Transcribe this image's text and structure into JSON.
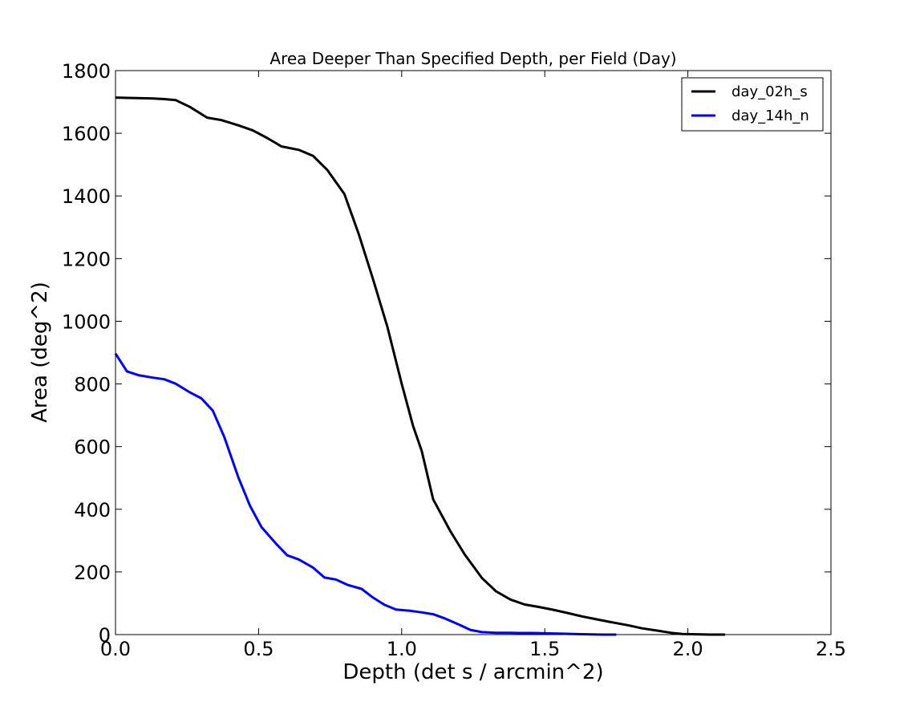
{
  "chart_data": {
    "type": "line",
    "title": "Area Deeper Than Specified Depth, per Field (Day)",
    "xlabel": "Depth (det s / arcmin^2)",
    "ylabel": "Area (deg^2)",
    "xlim": [
      0.0,
      2.5
    ],
    "ylim": [
      0,
      1800
    ],
    "xticks": [
      0.0,
      0.5,
      1.0,
      1.5,
      2.0,
      2.5
    ],
    "xtick_labels": [
      "0.0",
      "0.5",
      "1.0",
      "1.5",
      "2.0",
      "2.5"
    ],
    "yticks": [
      0,
      200,
      400,
      600,
      800,
      1000,
      1200,
      1400,
      1600,
      1800
    ],
    "ytick_labels": [
      "0",
      "200",
      "400",
      "600",
      "800",
      "1000",
      "1200",
      "1400",
      "1600",
      "1800"
    ],
    "grid": false,
    "legend_position": "top-right",
    "series": [
      {
        "name": "day_02h_s",
        "color": "#000000",
        "x": [
          0.0,
          0.04,
          0.09,
          0.13,
          0.17,
          0.21,
          0.26,
          0.32,
          0.37,
          0.43,
          0.48,
          0.53,
          0.58,
          0.64,
          0.69,
          0.74,
          0.8,
          0.85,
          0.9,
          0.95,
          1.0,
          1.04,
          1.07,
          1.11,
          1.17,
          1.22,
          1.28,
          1.33,
          1.38,
          1.43,
          1.48,
          1.53,
          1.58,
          1.63,
          1.68,
          1.73,
          1.79,
          1.84,
          1.89,
          1.94,
          1.98,
          2.03,
          2.08,
          2.13
        ],
        "y": [
          1714,
          1713,
          1712,
          1711,
          1709,
          1706,
          1684,
          1650,
          1642,
          1625,
          1609,
          1585,
          1558,
          1547,
          1528,
          1483,
          1406,
          1278,
          1134,
          982,
          801,
          665,
          586,
          432,
          330,
          256,
          181,
          138,
          112,
          96,
          88,
          79,
          69,
          58,
          49,
          40,
          30,
          20,
          13,
          6,
          2,
          1,
          0,
          0
        ]
      },
      {
        "name": "day_14h_n",
        "color": "#0000ff",
        "x": [
          0.0,
          0.04,
          0.08,
          0.13,
          0.17,
          0.21,
          0.26,
          0.3,
          0.34,
          0.38,
          0.43,
          0.47,
          0.51,
          0.56,
          0.6,
          0.64,
          0.69,
          0.73,
          0.77,
          0.81,
          0.86,
          0.9,
          0.94,
          0.98,
          1.03,
          1.07,
          1.11,
          1.15,
          1.2,
          1.24,
          1.28,
          1.33,
          1.37,
          1.41,
          1.46,
          1.5,
          1.55,
          1.6,
          1.65,
          1.7,
          1.75
        ],
        "y": [
          897,
          840,
          828,
          820,
          815,
          801,
          773,
          754,
          715,
          631,
          500,
          411,
          343,
          291,
          253,
          240,
          214,
          182,
          176,
          159,
          146,
          118,
          95,
          80,
          76,
          71,
          65,
          52,
          32,
          15,
          8,
          6,
          6,
          5,
          5,
          4,
          3,
          2,
          1,
          0,
          0
        ]
      }
    ]
  }
}
